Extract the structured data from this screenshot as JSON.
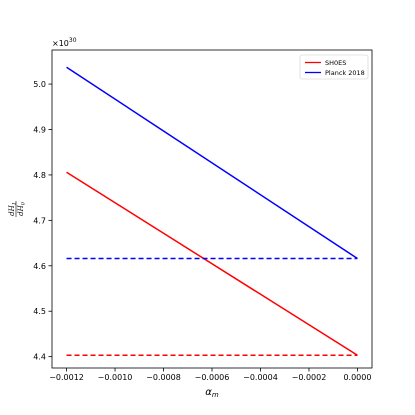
{
  "chart_data": {
    "type": "line",
    "xlabel": "α_m",
    "ylabel_num": "dH",
    "ylabel_num_sub": "1",
    "ylabel_den": "dH",
    "ylabel_den_sub": "0",
    "y_offset_label": "×10",
    "y_offset_exp": "30",
    "xlim": [
      -0.00126,
      6e-05
    ],
    "ylim": [
      4.375,
      5.075
    ],
    "x_ticks": [
      -0.0012,
      -0.001,
      -0.0008,
      -0.0006,
      -0.0004,
      -0.0002,
      0.0
    ],
    "x_tick_labels": [
      "−0.0012",
      "−0.0010",
      "−0.0008",
      "−0.0006",
      "−0.0004",
      "−0.0002",
      "0.0000"
    ],
    "y_ticks": [
      4.4,
      4.5,
      4.6,
      4.7,
      4.8,
      4.9,
      5.0
    ],
    "y_tick_labels": [
      "4.4",
      "4.5",
      "4.6",
      "4.7",
      "4.8",
      "4.9",
      "5.0"
    ],
    "grid": false,
    "legend_position": "top-right",
    "series": [
      {
        "name": "SH0ES",
        "color": "#ff0000",
        "dash": "solid",
        "x": [
          -0.0012,
          0.0
        ],
        "y": [
          4.806,
          4.403
        ]
      },
      {
        "name": "Planck 2018",
        "color": "#0000ff",
        "dash": "solid",
        "x": [
          -0.0012,
          0.0
        ],
        "y": [
          5.037,
          4.616
        ]
      },
      {
        "name": "",
        "color": "#ff0000",
        "dash": "dashed",
        "x": [
          -0.0012,
          0.0
        ],
        "y": [
          4.403,
          4.403
        ]
      },
      {
        "name": "",
        "color": "#0000ff",
        "dash": "dashed",
        "x": [
          -0.0012,
          0.0
        ],
        "y": [
          4.616,
          4.616
        ]
      }
    ]
  }
}
